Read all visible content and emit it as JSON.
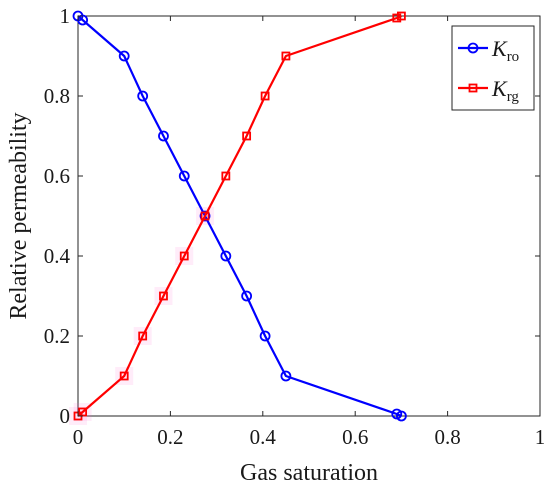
{
  "chart_data": {
    "type": "line",
    "xlabel": "Gas saturation",
    "ylabel": "Relative permeability",
    "xlim": [
      0,
      1
    ],
    "ylim": [
      0,
      1
    ],
    "xticks": [
      "0",
      "0.2",
      "0.4",
      "0.6",
      "0.8",
      "1"
    ],
    "yticks": [
      "0",
      "0.2",
      "0.4",
      "0.6",
      "0.8",
      "1"
    ],
    "grid": false,
    "legend_position": "top-right",
    "series": [
      {
        "name": "Kro",
        "name_main": "K",
        "name_sub": "ro",
        "color": "#0000ff",
        "marker": "circle",
        "x": [
          0.0,
          0.01,
          0.1,
          0.14,
          0.185,
          0.23,
          0.275,
          0.32,
          0.365,
          0.405,
          0.45,
          0.69,
          0.7
        ],
        "y": [
          1.0,
          0.99,
          0.9,
          0.8,
          0.7,
          0.6,
          0.5,
          0.4,
          0.3,
          0.2,
          0.1,
          0.005,
          0.0
        ]
      },
      {
        "name": "Krg",
        "name_main": "K",
        "name_sub": "rg",
        "color": "#ff0000",
        "marker": "square",
        "x": [
          0.0,
          0.01,
          0.1,
          0.14,
          0.185,
          0.23,
          0.275,
          0.32,
          0.365,
          0.405,
          0.45,
          0.69,
          0.7
        ],
        "y": [
          0.0,
          0.01,
          0.1,
          0.2,
          0.3,
          0.4,
          0.5,
          0.6,
          0.7,
          0.8,
          0.9,
          0.995,
          1.0
        ]
      }
    ]
  }
}
